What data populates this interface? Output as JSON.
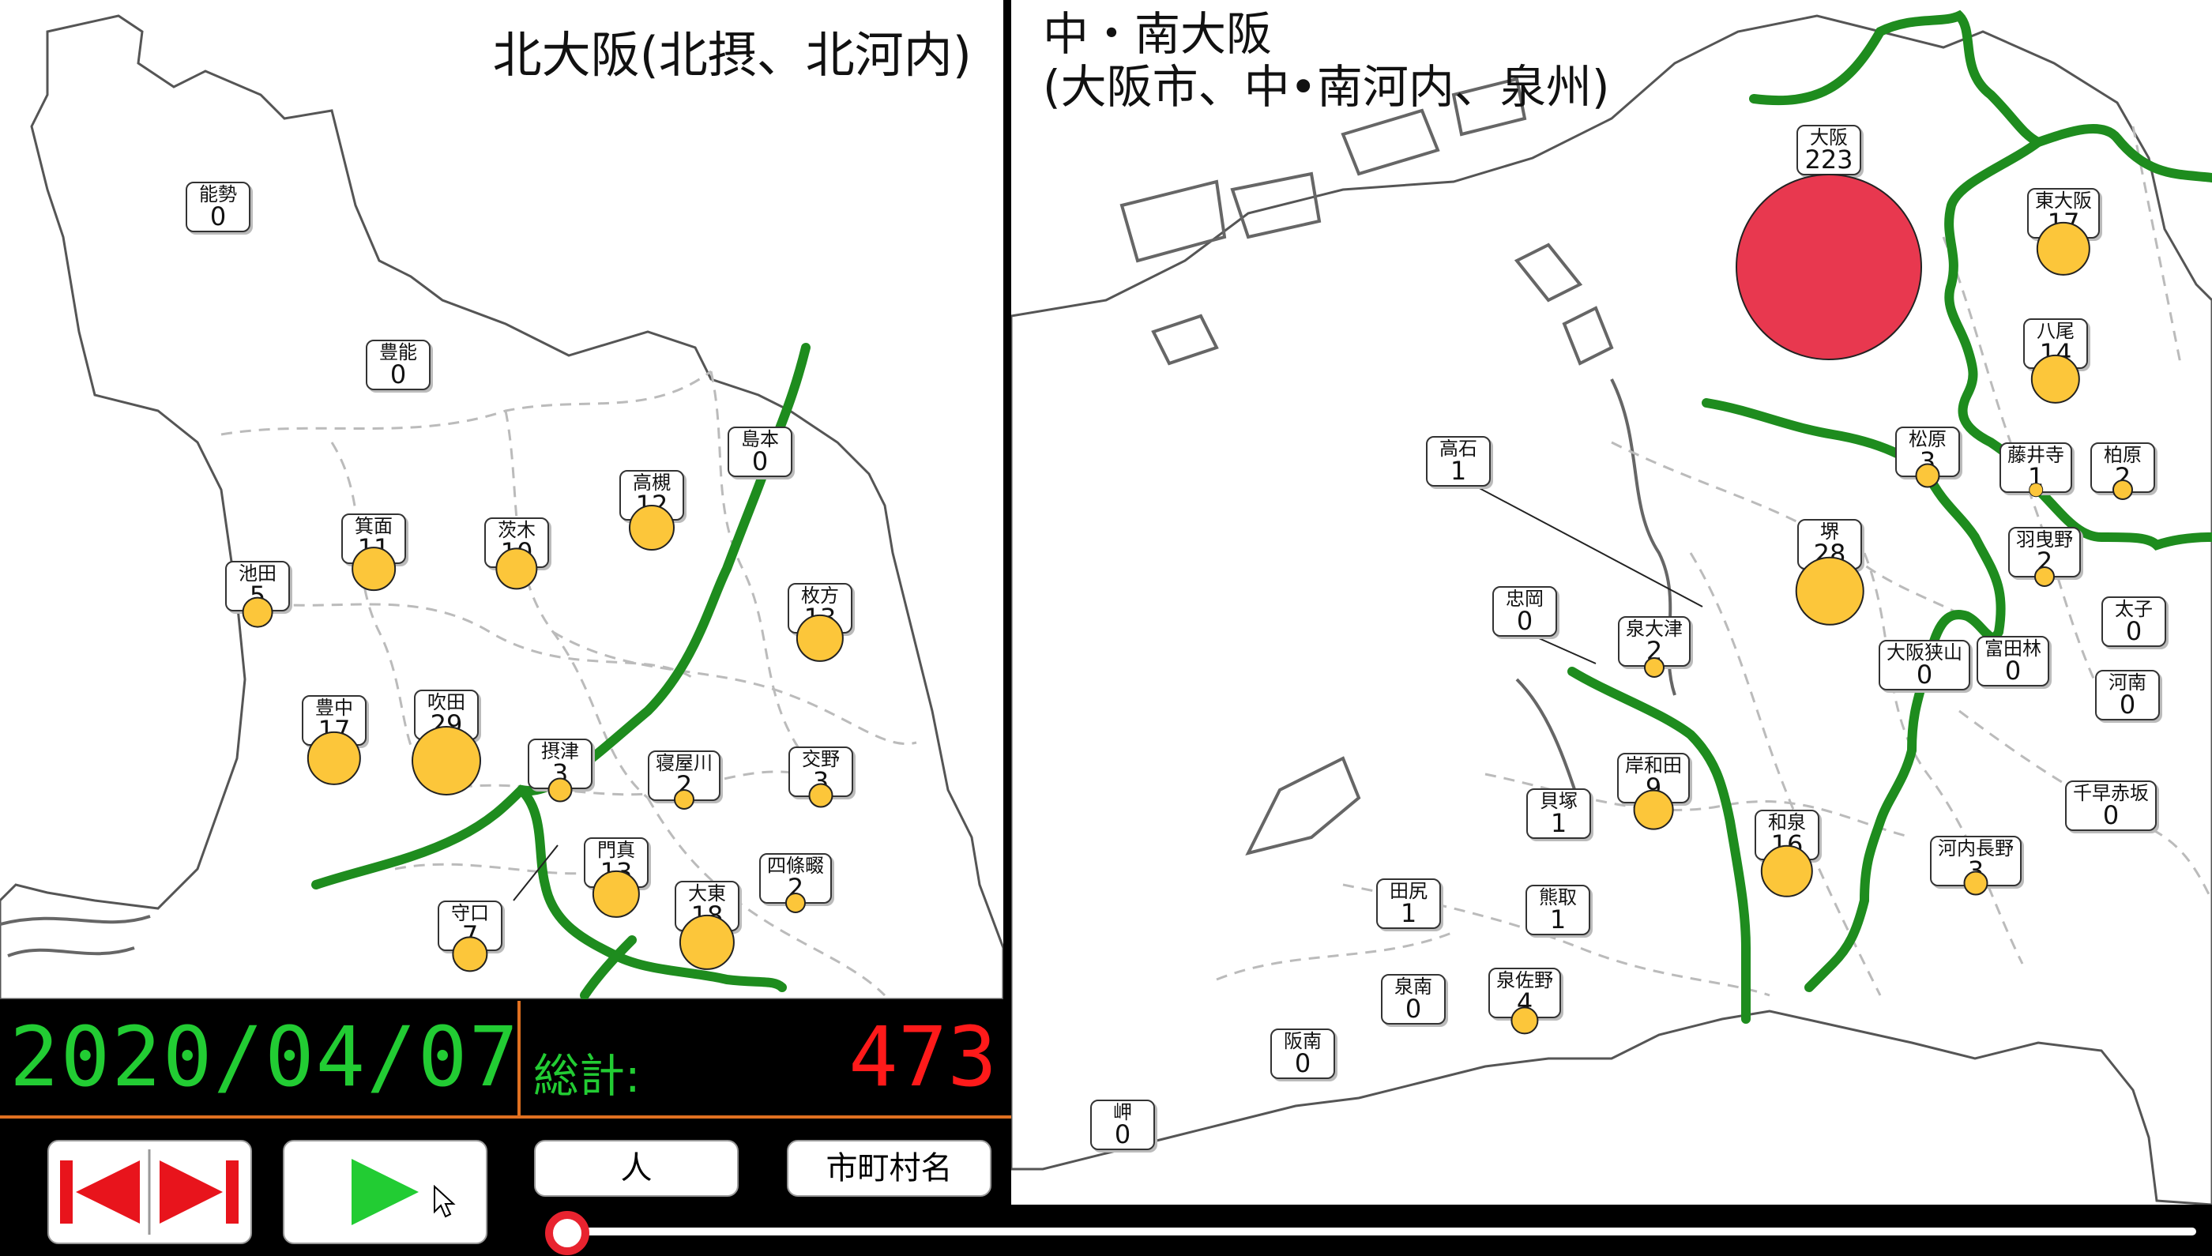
{
  "left_map": {
    "title": "北大阪(北摂、北河内)"
  },
  "right_map": {
    "title_line1": "中・南大阪",
    "title_line2": "(大阪市、中•南河内、泉州)"
  },
  "municipalities_north": [
    {
      "name": "能勢",
      "count": "0"
    },
    {
      "name": "豊能",
      "count": "0"
    },
    {
      "name": "島本",
      "count": "0"
    },
    {
      "name": "高槻",
      "count": "12"
    },
    {
      "name": "箕面",
      "count": "11"
    },
    {
      "name": "茨木",
      "count": "10"
    },
    {
      "name": "池田",
      "count": "5"
    },
    {
      "name": "枚方",
      "count": "13"
    },
    {
      "name": "豊中",
      "count": "17"
    },
    {
      "name": "吹田",
      "count": "29"
    },
    {
      "name": "摂津",
      "count": "3"
    },
    {
      "name": "寝屋川",
      "count": "2"
    },
    {
      "name": "交野",
      "count": "3"
    },
    {
      "name": "門真",
      "count": "13"
    },
    {
      "name": "四條畷",
      "count": "2"
    },
    {
      "name": "大東",
      "count": "18"
    },
    {
      "name": "守口",
      "count": "7"
    }
  ],
  "municipalities_south": [
    {
      "name": "大阪",
      "count": "223"
    },
    {
      "name": "東大阪",
      "count": "17"
    },
    {
      "name": "八尾",
      "count": "14"
    },
    {
      "name": "松原",
      "count": "3"
    },
    {
      "name": "藤井寺",
      "count": "1"
    },
    {
      "name": "柏原",
      "count": "2"
    },
    {
      "name": "高石",
      "count": "1"
    },
    {
      "name": "堺",
      "count": "28"
    },
    {
      "name": "羽曳野",
      "count": "2"
    },
    {
      "name": "忠岡",
      "count": "0"
    },
    {
      "name": "泉大津",
      "count": "2"
    },
    {
      "name": "太子",
      "count": "0"
    },
    {
      "name": "大阪狭山",
      "count": "0"
    },
    {
      "name": "富田林",
      "count": "0"
    },
    {
      "name": "河南",
      "count": "0"
    },
    {
      "name": "岸和田",
      "count": "9"
    },
    {
      "name": "貝塚",
      "count": "1"
    },
    {
      "name": "千早赤坂",
      "count": "0"
    },
    {
      "name": "和泉",
      "count": "16"
    },
    {
      "name": "河内長野",
      "count": "3"
    },
    {
      "name": "田尻",
      "count": "1"
    },
    {
      "name": "熊取",
      "count": "1"
    },
    {
      "name": "泉南",
      "count": "0"
    },
    {
      "name": "泉佐野",
      "count": "4"
    },
    {
      "name": "阪南",
      "count": "0"
    },
    {
      "name": "岬",
      "count": "0"
    }
  ],
  "status": {
    "date": "2020/04/07",
    "total_label": "総計:",
    "total_value": "473"
  },
  "controls": {
    "unit_label": "人",
    "name_toggle_label": "市町村名",
    "playback_position": 0.0
  },
  "colors": {
    "date": "#22cc33",
    "total": "#ff1a1a",
    "big_marker": "#e8384f",
    "marker": "#fcc63a",
    "route": "#1e8c1e"
  },
  "icons": [
    "skip-to-start-icon",
    "skip-to-end-icon",
    "play-icon",
    "mouse-cursor-icon"
  ]
}
